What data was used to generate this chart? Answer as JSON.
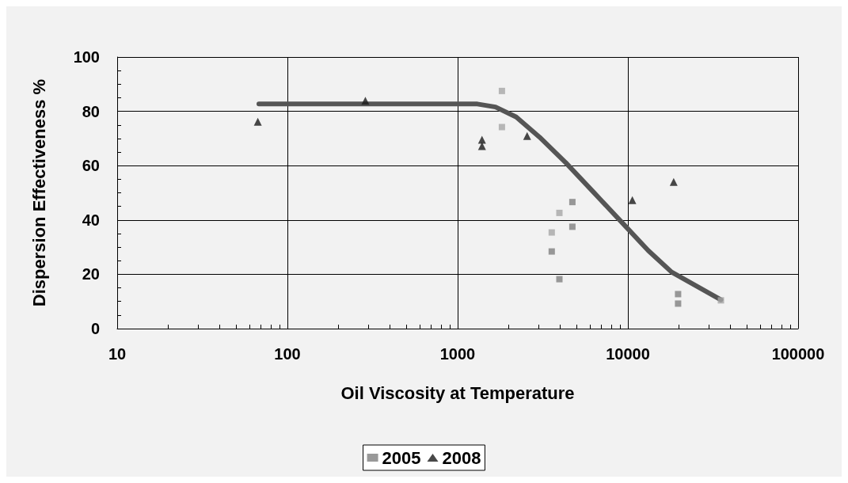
{
  "chart_data": {
    "type": "scatter",
    "xlabel": "Oil Viscosity at Temperature",
    "ylabel": "Dispersion Effectiveness %",
    "log": "x",
    "grid": true,
    "legend": "bottom",
    "xlim": [
      10,
      100000
    ],
    "xticks": [
      10,
      100,
      1000,
      10000,
      100000
    ],
    "ylim": [
      0,
      100
    ],
    "yticks": [
      0,
      20,
      40,
      60,
      80,
      100
    ],
    "series": [
      {
        "name": "2005",
        "marker": "square",
        "color": "#7f7f7f",
        "x": [
          4720,
          4720,
          3570,
          3960,
          19720,
          19720
        ],
        "values": [
          46.6,
          37.5,
          28.4,
          18.2,
          12.7,
          9.2
        ]
      },
      {
        "marker": "square",
        "color": "#a6a6a6",
        "x": [
          1820,
          1820,
          3960,
          3570,
          35200
        ],
        "values": [
          87.5,
          74.2,
          42.6,
          35.4,
          10.4
        ]
      },
      {
        "name": "2008",
        "marker": "triangle",
        "color": "#1a1a1a",
        "x": [
          67,
          287,
          1390,
          1390,
          2560,
          10620,
          18580
        ],
        "values": [
          76.2,
          83.9,
          69.5,
          67.2,
          70.9,
          47.3,
          54.0
        ]
      },
      {
        "type": "line",
        "marker": "none",
        "color": "#555555",
        "x": [
          68,
          1306,
          1668,
          2208,
          3027,
          4300,
          6310,
          9290,
          13180,
          18070,
          35200
        ],
        "values": [
          82.7,
          82.7,
          81.6,
          77.9,
          70.5,
          61.2,
          50.1,
          38.9,
          28.7,
          20.8,
          10.6
        ]
      }
    ]
  }
}
